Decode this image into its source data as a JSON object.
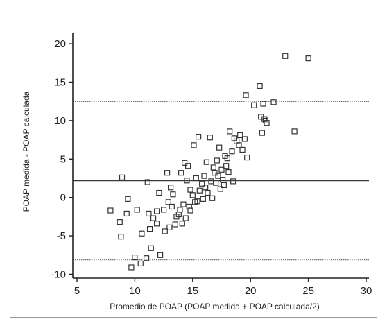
{
  "chart_data": {
    "type": "scatter",
    "title": "",
    "xlabel": "Promedio de POAP (POAP medida + POAP calculada/2)",
    "ylabel": "POAP medida - POAP calculada",
    "xlim": [
      5,
      30
    ],
    "ylim": [
      -10.5,
      21
    ],
    "xticks": [
      5,
      10,
      15,
      20,
      25,
      30
    ],
    "yticks": [
      -10,
      -5,
      0,
      5,
      10,
      15,
      20
    ],
    "grid": false,
    "marker": "open-square",
    "colors": {
      "marker": "#333333",
      "axis": "#222222",
      "mean_line": "#3a3a3a",
      "limit_line": "#777777"
    },
    "reference_lines": [
      {
        "y": 12.5,
        "style": "dotted"
      },
      {
        "y": 2.2,
        "style": "solid"
      },
      {
        "y": -8.1,
        "style": "dotted"
      }
    ],
    "points": [
      {
        "x": 7.9,
        "y": -1.7
      },
      {
        "x": 8.7,
        "y": -3.2
      },
      {
        "x": 8.8,
        "y": -5.1
      },
      {
        "x": 8.9,
        "y": 2.6
      },
      {
        "x": 9.3,
        "y": -2.1
      },
      {
        "x": 9.4,
        "y": -0.2
      },
      {
        "x": 9.7,
        "y": -9.1
      },
      {
        "x": 10.0,
        "y": -7.8
      },
      {
        "x": 10.2,
        "y": -1.6
      },
      {
        "x": 10.5,
        "y": -8.6
      },
      {
        "x": 10.6,
        "y": -4.7
      },
      {
        "x": 11.0,
        "y": -7.9
      },
      {
        "x": 11.1,
        "y": 2.0
      },
      {
        "x": 11.2,
        "y": -2.1
      },
      {
        "x": 11.3,
        "y": -4.1
      },
      {
        "x": 11.4,
        "y": -6.6
      },
      {
        "x": 11.6,
        "y": -2.7
      },
      {
        "x": 11.9,
        "y": -3.4
      },
      {
        "x": 11.9,
        "y": -1.8
      },
      {
        "x": 12.1,
        "y": 0.6
      },
      {
        "x": 12.2,
        "y": -7.5
      },
      {
        "x": 12.5,
        "y": -1.6
      },
      {
        "x": 12.6,
        "y": -4.4
      },
      {
        "x": 12.8,
        "y": 3.2
      },
      {
        "x": 12.9,
        "y": -0.6
      },
      {
        "x": 13.0,
        "y": -3.9
      },
      {
        "x": 13.1,
        "y": 1.3
      },
      {
        "x": 13.2,
        "y": -1.2
      },
      {
        "x": 13.3,
        "y": 0.4
      },
      {
        "x": 13.5,
        "y": -3.5
      },
      {
        "x": 13.6,
        "y": -2.5
      },
      {
        "x": 13.8,
        "y": -2.2
      },
      {
        "x": 13.9,
        "y": -1.6
      },
      {
        "x": 14.0,
        "y": 3.2
      },
      {
        "x": 14.1,
        "y": -3.4
      },
      {
        "x": 14.2,
        "y": -0.9
      },
      {
        "x": 14.3,
        "y": 4.5
      },
      {
        "x": 14.4,
        "y": -2.7
      },
      {
        "x": 14.5,
        "y": 2.2
      },
      {
        "x": 14.6,
        "y": 4.1
      },
      {
        "x": 14.7,
        "y": -1.2
      },
      {
        "x": 14.8,
        "y": 1.0
      },
      {
        "x": 14.8,
        "y": -1.7
      },
      {
        "x": 15.0,
        "y": 0.3
      },
      {
        "x": 15.1,
        "y": 6.8
      },
      {
        "x": 15.2,
        "y": -0.6
      },
      {
        "x": 15.3,
        "y": 2.5
      },
      {
        "x": 15.4,
        "y": -0.5
      },
      {
        "x": 15.5,
        "y": 7.9
      },
      {
        "x": 15.6,
        "y": 0.9
      },
      {
        "x": 15.8,
        "y": 1.8
      },
      {
        "x": 15.9,
        "y": -0.2
      },
      {
        "x": 16.0,
        "y": 2.8
      },
      {
        "x": 16.1,
        "y": 1.3
      },
      {
        "x": 16.2,
        "y": 4.6
      },
      {
        "x": 16.3,
        "y": 0.6
      },
      {
        "x": 16.5,
        "y": 7.8
      },
      {
        "x": 16.6,
        "y": 2.1
      },
      {
        "x": 16.7,
        "y": -0.1
      },
      {
        "x": 16.8,
        "y": 3.9
      },
      {
        "x": 16.9,
        "y": 3.2
      },
      {
        "x": 17.0,
        "y": 1.9
      },
      {
        "x": 17.1,
        "y": 4.8
      },
      {
        "x": 17.2,
        "y": 2.8
      },
      {
        "x": 17.3,
        "y": 6.5
      },
      {
        "x": 17.4,
        "y": 1.1
      },
      {
        "x": 17.5,
        "y": 3.6
      },
      {
        "x": 17.6,
        "y": 2.3
      },
      {
        "x": 17.7,
        "y": 1.6
      },
      {
        "x": 17.8,
        "y": 5.4
      },
      {
        "x": 17.9,
        "y": 4.1
      },
      {
        "x": 18.0,
        "y": 5.1
      },
      {
        "x": 18.1,
        "y": 3.3
      },
      {
        "x": 18.2,
        "y": 8.6
      },
      {
        "x": 18.4,
        "y": 6.0
      },
      {
        "x": 18.5,
        "y": 2.1
      },
      {
        "x": 18.6,
        "y": 7.7
      },
      {
        "x": 18.8,
        "y": 7.3
      },
      {
        "x": 19.0,
        "y": 6.8
      },
      {
        "x": 19.1,
        "y": 8.1
      },
      {
        "x": 19.3,
        "y": 6.2
      },
      {
        "x": 19.5,
        "y": 7.6
      },
      {
        "x": 19.7,
        "y": 5.2
      },
      {
        "x": 19.6,
        "y": 13.3
      },
      {
        "x": 20.3,
        "y": 12.0
      },
      {
        "x": 20.8,
        "y": 14.5
      },
      {
        "x": 20.9,
        "y": 10.5
      },
      {
        "x": 21.0,
        "y": 8.4
      },
      {
        "x": 21.1,
        "y": 12.2
      },
      {
        "x": 21.2,
        "y": 10.2
      },
      {
        "x": 21.3,
        "y": 10.0
      },
      {
        "x": 21.4,
        "y": 9.7
      },
      {
        "x": 22.0,
        "y": 12.4
      },
      {
        "x": 23.0,
        "y": 18.4
      },
      {
        "x": 23.8,
        "y": 8.6
      },
      {
        "x": 25.0,
        "y": 18.1
      }
    ]
  }
}
